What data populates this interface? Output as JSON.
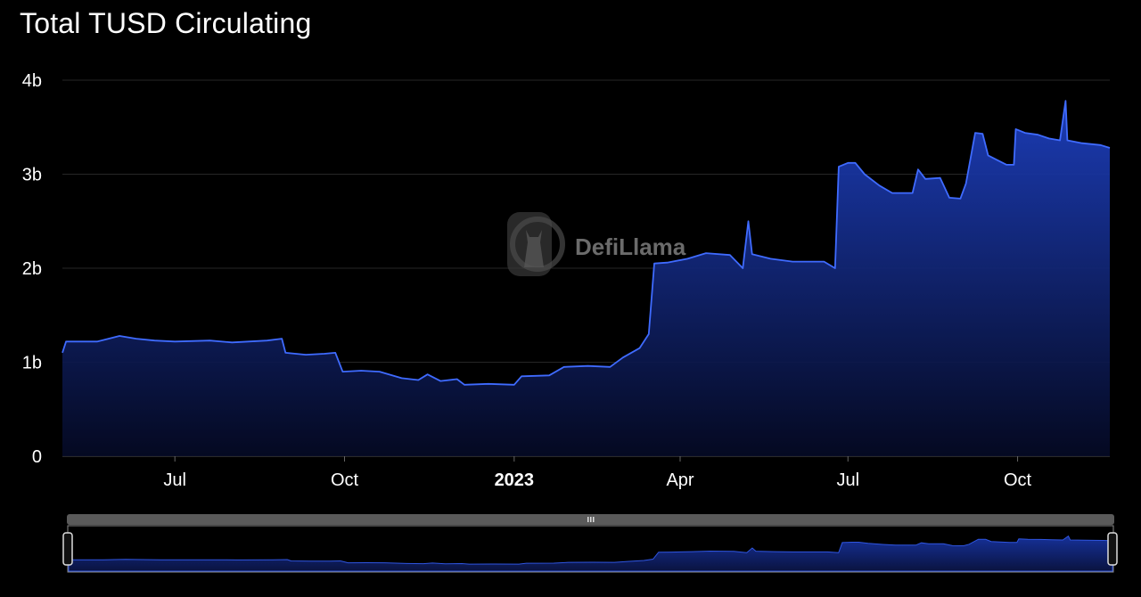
{
  "chart_data": {
    "type": "area",
    "title": "Total TUSD Circulating",
    "xlabel": "",
    "ylabel": "",
    "x_ticks": [
      "Jul",
      "Oct",
      "2023",
      "Apr",
      "Jul",
      "Oct"
    ],
    "x_ticks_bold": [
      "2023"
    ],
    "y_ticks": [
      "0",
      "1b",
      "2b",
      "3b",
      "4b"
    ],
    "y_tick_values": [
      0,
      1,
      2,
      3,
      4
    ],
    "ylim": [
      0,
      4
    ],
    "xlim": [
      "2022-05-01",
      "2023-11-20"
    ],
    "y_unit": "billions USD",
    "grid": true,
    "legend": "none",
    "series": [
      {
        "values": [
          [
            "2022-05-01",
            1.1
          ],
          [
            "2022-05-03",
            1.22
          ],
          [
            "2022-05-20",
            1.22
          ],
          [
            "2022-06-01",
            1.28
          ],
          [
            "2022-06-10",
            1.25
          ],
          [
            "2022-06-20",
            1.23
          ],
          [
            "2022-07-01",
            1.22
          ],
          [
            "2022-07-20",
            1.23
          ],
          [
            "2022-08-01",
            1.21
          ],
          [
            "2022-08-20",
            1.23
          ],
          [
            "2022-08-28",
            1.25
          ],
          [
            "2022-08-30",
            1.1
          ],
          [
            "2022-09-10",
            1.08
          ],
          [
            "2022-09-20",
            1.09
          ],
          [
            "2022-09-26",
            1.1
          ],
          [
            "2022-09-30",
            0.9
          ],
          [
            "2022-10-10",
            0.91
          ],
          [
            "2022-10-20",
            0.9
          ],
          [
            "2022-11-01",
            0.83
          ],
          [
            "2022-11-10",
            0.81
          ],
          [
            "2022-11-15",
            0.87
          ],
          [
            "2022-11-22",
            0.8
          ],
          [
            "2022-12-01",
            0.82
          ],
          [
            "2022-12-05",
            0.76
          ],
          [
            "2022-12-18",
            0.77
          ],
          [
            "2023-01-01",
            0.76
          ],
          [
            "2023-01-05",
            0.85
          ],
          [
            "2023-01-20",
            0.86
          ],
          [
            "2023-01-28",
            0.95
          ],
          [
            "2023-02-10",
            0.96
          ],
          [
            "2023-02-22",
            0.95
          ],
          [
            "2023-03-01",
            1.05
          ],
          [
            "2023-03-10",
            1.15
          ],
          [
            "2023-03-15",
            1.3
          ],
          [
            "2023-03-18",
            2.05
          ],
          [
            "2023-03-25",
            2.06
          ],
          [
            "2023-04-05",
            2.1
          ],
          [
            "2023-04-15",
            2.16
          ],
          [
            "2023-04-28",
            2.14
          ],
          [
            "2023-05-05",
            2.0
          ],
          [
            "2023-05-08",
            2.5
          ],
          [
            "2023-05-10",
            2.15
          ],
          [
            "2023-05-20",
            2.1
          ],
          [
            "2023-06-01",
            2.07
          ],
          [
            "2023-06-18",
            2.07
          ],
          [
            "2023-06-24",
            2.0
          ],
          [
            "2023-06-26",
            3.08
          ],
          [
            "2023-07-01",
            3.12
          ],
          [
            "2023-07-05",
            3.12
          ],
          [
            "2023-07-10",
            3.0
          ],
          [
            "2023-07-18",
            2.88
          ],
          [
            "2023-07-25",
            2.8
          ],
          [
            "2023-08-05",
            2.8
          ],
          [
            "2023-08-08",
            3.05
          ],
          [
            "2023-08-12",
            2.95
          ],
          [
            "2023-08-20",
            2.96
          ],
          [
            "2023-08-25",
            2.75
          ],
          [
            "2023-08-31",
            2.74
          ],
          [
            "2023-09-03",
            2.9
          ],
          [
            "2023-09-08",
            3.44
          ],
          [
            "2023-09-12",
            3.43
          ],
          [
            "2023-09-15",
            3.2
          ],
          [
            "2023-09-20",
            3.15
          ],
          [
            "2023-09-25",
            3.1
          ],
          [
            "2023-09-29",
            3.1
          ],
          [
            "2023-09-30",
            3.48
          ],
          [
            "2023-10-05",
            3.44
          ],
          [
            "2023-10-12",
            3.42
          ],
          [
            "2023-10-18",
            3.38
          ],
          [
            "2023-10-24",
            3.36
          ],
          [
            "2023-10-27",
            3.78
          ],
          [
            "2023-10-28",
            3.36
          ],
          [
            "2023-11-05",
            3.33
          ],
          [
            "2023-11-15",
            3.31
          ],
          [
            "2023-11-20",
            3.28
          ]
        ]
      }
    ]
  },
  "watermark": {
    "text": "DefiLlama"
  },
  "colors": {
    "line": "#3f6bff",
    "fill_top": "#1a3fb8",
    "fill_bottom": "#05081f",
    "grid": "#2a2a2a",
    "background": "#000000"
  },
  "slider": {
    "handle_icon": "grip-icon"
  }
}
